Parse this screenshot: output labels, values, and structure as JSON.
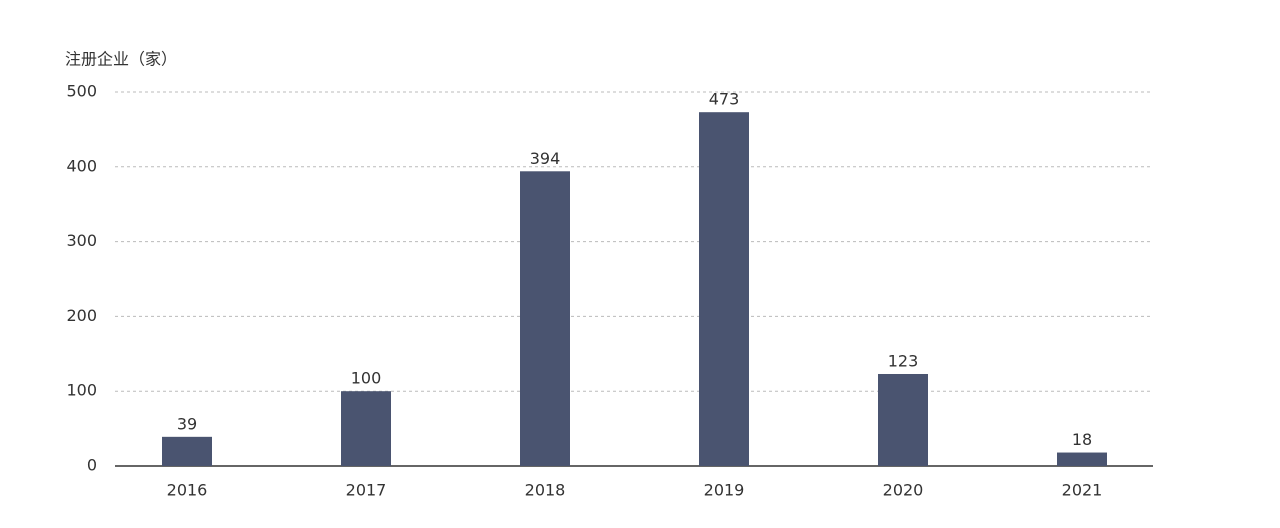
{
  "chart_data": {
    "type": "bar",
    "y_label": "注册企业（家）",
    "categories": [
      "2016",
      "2017",
      "2018",
      "2019",
      "2020",
      "2021"
    ],
    "values": [
      39,
      100,
      394,
      473,
      123,
      18
    ],
    "color": "#4a5470",
    "ylim": [
      0,
      500
    ],
    "yticks": [
      0,
      100,
      200,
      300,
      400,
      500
    ],
    "grid": true
  }
}
